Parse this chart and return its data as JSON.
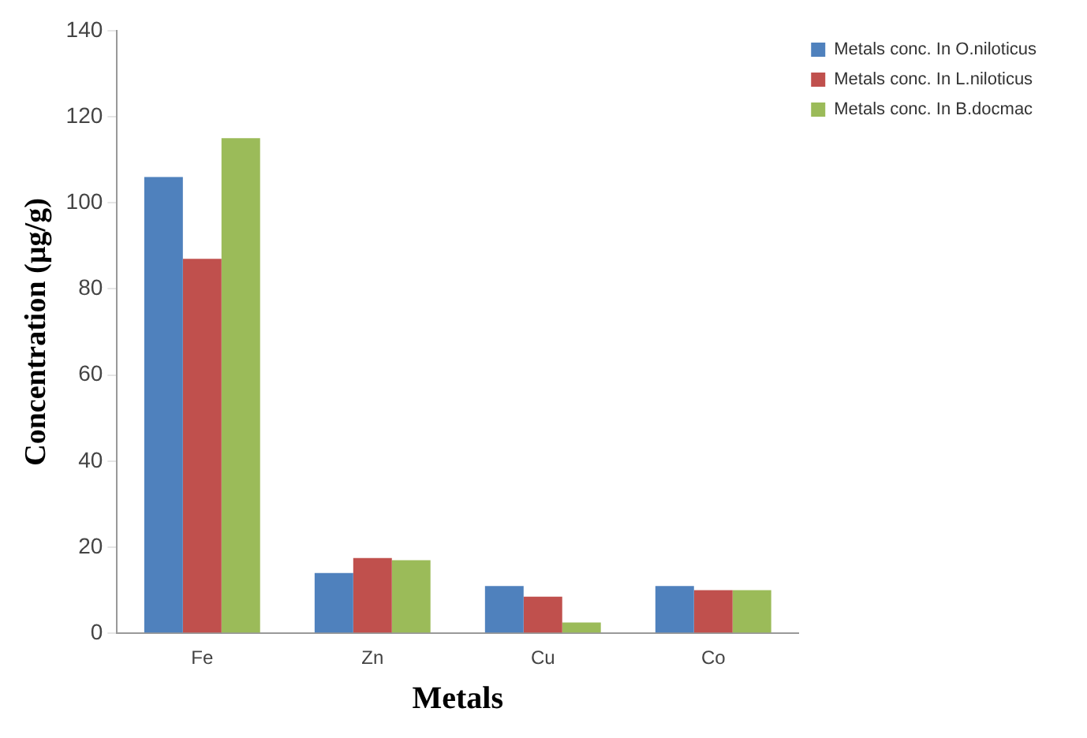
{
  "chart_data": {
    "type": "bar",
    "xlabel": "Metals",
    "ylabel": "Concentration (µg/g)",
    "categories": [
      "Fe",
      "Zn",
      "Cu",
      "Co"
    ],
    "series": [
      {
        "name": "Metals conc. In O.niloticus",
        "color": "#4f81bd",
        "values": [
          106,
          14,
          11,
          11
        ]
      },
      {
        "name": "Metals conc. In L.niloticus",
        "color": "#c0504d",
        "values": [
          87,
          17.5,
          8.5,
          10
        ]
      },
      {
        "name": "Metals conc. In B.docmac",
        "color": "#9bbb59",
        "values": [
          115,
          17,
          2.5,
          10
        ]
      }
    ],
    "ylim": [
      0,
      140
    ],
    "yticks": [
      0,
      20,
      40,
      60,
      80,
      100,
      120,
      140
    ],
    "grid": false,
    "legend": "right"
  }
}
